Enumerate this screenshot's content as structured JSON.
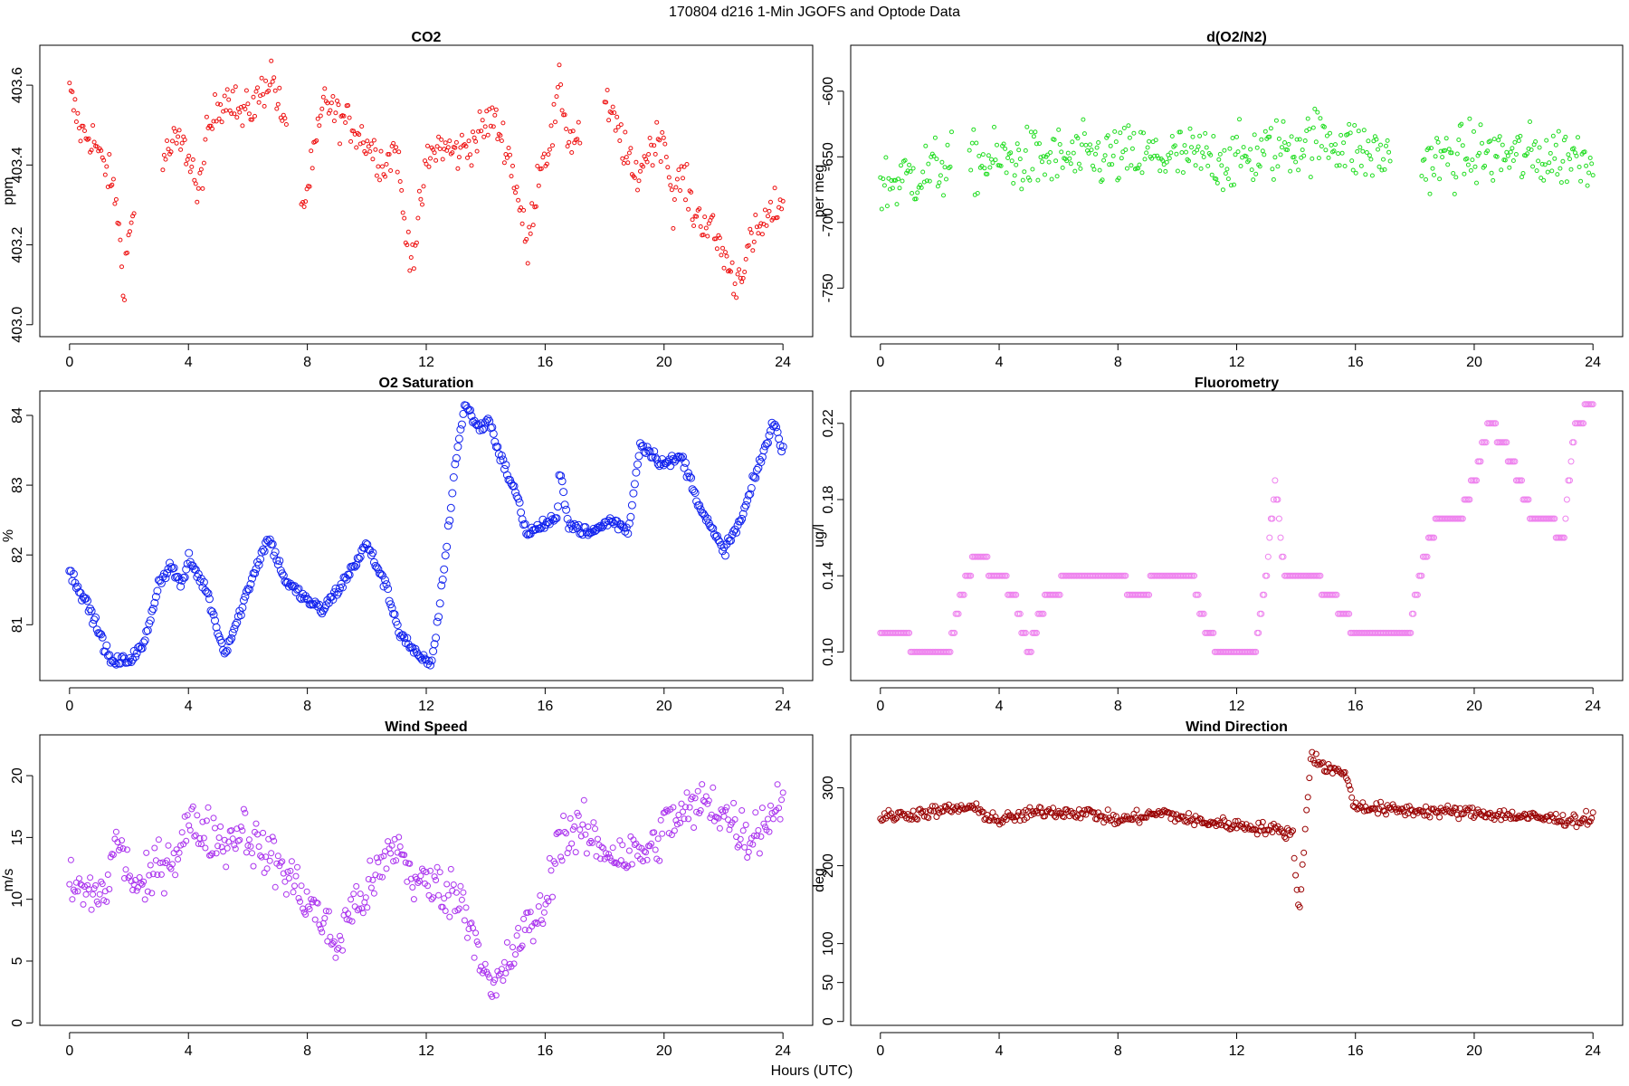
{
  "figure": {
    "suptitle": "170804   d216   1-Min  JGOFS and Optode Data",
    "xlabel": "Hours (UTC)"
  },
  "chart_data": [
    {
      "type": "scatter",
      "title": "CO2",
      "ylabel": "ppm",
      "xlim": [
        -1,
        25
      ],
      "ylim": [
        402.97,
        403.7
      ],
      "xticks": [
        0,
        4,
        8,
        12,
        16,
        20,
        24
      ],
      "yticks": [
        403.0,
        403.2,
        403.4,
        403.6
      ],
      "ytick_labels": [
        "403.0",
        "403.2",
        "403.4",
        "403.6"
      ],
      "color": "#ee1111",
      "marker_size": 2,
      "gaps": [
        [
          2.2,
          3.1
        ],
        [
          7.3,
          7.8
        ],
        [
          17.2,
          18.0
        ]
      ],
      "noise": 0.025,
      "points": [
        [
          0.0,
          403.58
        ],
        [
          0.4,
          403.48
        ],
        [
          0.8,
          403.47
        ],
        [
          1.0,
          403.42
        ],
        [
          1.3,
          403.38
        ],
        [
          1.6,
          403.3
        ],
        [
          1.8,
          403.1
        ],
        [
          2.0,
          403.22
        ],
        [
          2.2,
          403.3
        ],
        [
          3.2,
          403.42
        ],
        [
          3.6,
          403.46
        ],
        [
          4.0,
          403.43
        ],
        [
          4.2,
          403.38
        ],
        [
          4.3,
          403.3
        ],
        [
          4.6,
          403.46
        ],
        [
          5.0,
          403.55
        ],
        [
          5.4,
          403.58
        ],
        [
          5.8,
          403.52
        ],
        [
          6.3,
          403.56
        ],
        [
          6.8,
          403.63
        ],
        [
          7.2,
          403.5
        ],
        [
          7.9,
          403.3
        ],
        [
          8.3,
          403.45
        ],
        [
          8.6,
          403.57
        ],
        [
          9.0,
          403.52
        ],
        [
          9.5,
          403.5
        ],
        [
          10.2,
          403.44
        ],
        [
          10.6,
          403.4
        ],
        [
          11.0,
          403.45
        ],
        [
          11.3,
          403.22
        ],
        [
          11.6,
          403.18
        ],
        [
          12.0,
          403.4
        ],
        [
          12.4,
          403.45
        ],
        [
          13.0,
          403.43
        ],
        [
          13.6,
          403.46
        ],
        [
          14.2,
          403.52
        ],
        [
          14.7,
          403.45
        ],
        [
          15.1,
          403.32
        ],
        [
          15.4,
          403.18
        ],
        [
          15.8,
          403.4
        ],
        [
          16.2,
          403.46
        ],
        [
          16.5,
          403.6
        ],
        [
          16.8,
          403.46
        ],
        [
          17.2,
          403.48
        ],
        [
          18.0,
          403.55
        ],
        [
          18.5,
          403.48
        ],
        [
          19.0,
          403.36
        ],
        [
          19.5,
          403.44
        ],
        [
          20.0,
          403.48
        ],
        [
          20.3,
          403.3
        ],
        [
          20.6,
          403.38
        ],
        [
          21.0,
          403.28
        ],
        [
          21.5,
          403.25
        ],
        [
          22.0,
          403.18
        ],
        [
          22.4,
          403.1
        ],
        [
          22.8,
          403.18
        ],
        [
          23.2,
          403.24
        ],
        [
          23.6,
          403.27
        ],
        [
          24.0,
          403.32
        ]
      ]
    },
    {
      "type": "scatter",
      "title": "d(O2/N2)",
      "ylabel": "per meg",
      "xlim": [
        -1,
        25
      ],
      "ylim": [
        -787,
        -565
      ],
      "xticks": [
        0,
        4,
        8,
        12,
        16,
        20,
        24
      ],
      "yticks": [
        -750,
        -700,
        -650,
        -600
      ],
      "ytick_labels": [
        "-750",
        "-700",
        "-650",
        "-600"
      ],
      "color": "#22dd22",
      "marker_size": 2,
      "gaps": [
        [
          2.4,
          3.0
        ],
        [
          7.9,
          7.9
        ],
        [
          17.2,
          18.2
        ]
      ],
      "noise": 12,
      "points": [
        [
          0.0,
          -672
        ],
        [
          1.0,
          -665
        ],
        [
          2.0,
          -658
        ],
        [
          3.0,
          -655
        ],
        [
          4.0,
          -653
        ],
        [
          6.0,
          -652
        ],
        [
          8.0,
          -650
        ],
        [
          10.0,
          -650
        ],
        [
          12.0,
          -652
        ],
        [
          14.0,
          -640
        ],
        [
          15.0,
          -635
        ],
        [
          16.0,
          -645
        ],
        [
          18.0,
          -655
        ],
        [
          20.0,
          -648
        ],
        [
          22.0,
          -650
        ],
        [
          24.0,
          -648
        ]
      ]
    },
    {
      "type": "scatter",
      "title": "O2 Saturation",
      "ylabel": "%",
      "xlim": [
        -1,
        25
      ],
      "ylim": [
        80.2,
        84.35
      ],
      "xticks": [
        0,
        4,
        8,
        12,
        16,
        20,
        24
      ],
      "yticks": [
        81,
        82,
        83,
        84
      ],
      "ytick_labels": [
        "81",
        "82",
        "83",
        "84"
      ],
      "color": "#1122ee",
      "marker_size": 4,
      "gaps": [],
      "noise": 0.04,
      "points": [
        [
          0.0,
          81.75
        ],
        [
          0.3,
          81.55
        ],
        [
          0.8,
          81.1
        ],
        [
          1.4,
          80.45
        ],
        [
          2.0,
          80.5
        ],
        [
          2.5,
          80.7
        ],
        [
          3.0,
          81.6
        ],
        [
          3.4,
          81.85
        ],
        [
          3.8,
          81.55
        ],
        [
          4.0,
          81.95
        ],
        [
          4.6,
          81.5
        ],
        [
          5.2,
          80.6
        ],
        [
          5.6,
          81.0
        ],
        [
          6.2,
          81.75
        ],
        [
          6.7,
          82.25
        ],
        [
          7.3,
          81.6
        ],
        [
          8.0,
          81.35
        ],
        [
          8.5,
          81.2
        ],
        [
          9.2,
          81.6
        ],
        [
          10.0,
          82.15
        ],
        [
          10.6,
          81.6
        ],
        [
          11.1,
          80.9
        ],
        [
          11.8,
          80.5
        ],
        [
          12.2,
          80.45
        ],
        [
          12.6,
          81.8
        ],
        [
          13.0,
          83.4
        ],
        [
          13.3,
          84.15
        ],
        [
          13.8,
          83.8
        ],
        [
          14.1,
          83.95
        ],
        [
          14.5,
          83.4
        ],
        [
          15.0,
          82.9
        ],
        [
          15.4,
          82.3
        ],
        [
          16.0,
          82.45
        ],
        [
          16.4,
          82.5
        ],
        [
          16.5,
          83.2
        ],
        [
          16.8,
          82.45
        ],
        [
          17.5,
          82.3
        ],
        [
          18.2,
          82.5
        ],
        [
          18.8,
          82.35
        ],
        [
          19.2,
          83.6
        ],
        [
          20.0,
          83.3
        ],
        [
          20.6,
          83.4
        ],
        [
          21.3,
          82.6
        ],
        [
          22.0,
          82.05
        ],
        [
          22.6,
          82.5
        ],
        [
          23.2,
          83.3
        ],
        [
          23.7,
          83.9
        ],
        [
          24.0,
          83.5
        ]
      ]
    },
    {
      "type": "scatter",
      "title": "Fluorometry",
      "ylabel": "ug/l",
      "xlim": [
        -1,
        25
      ],
      "ylim": [
        0.085,
        0.237
      ],
      "xticks": [
        0,
        4,
        8,
        12,
        16,
        20,
        24
      ],
      "yticks": [
        0.1,
        0.14,
        0.18,
        0.22
      ],
      "ytick_labels": [
        "0.10",
        "0.14",
        "0.18",
        "0.22"
      ],
      "color": "#ee82ee",
      "marker_size": 3,
      "gaps": [],
      "noise": 0,
      "quantize": 0.01,
      "points": [
        [
          0.0,
          0.11
        ],
        [
          0.8,
          0.11
        ],
        [
          1.2,
          0.1
        ],
        [
          2.3,
          0.1
        ],
        [
          2.7,
          0.13
        ],
        [
          3.2,
          0.15
        ],
        [
          4.0,
          0.14
        ],
        [
          4.5,
          0.13
        ],
        [
          5.0,
          0.1
        ],
        [
          5.6,
          0.13
        ],
        [
          6.5,
          0.14
        ],
        [
          8.0,
          0.14
        ],
        [
          8.6,
          0.13
        ],
        [
          9.5,
          0.14
        ],
        [
          10.5,
          0.14
        ],
        [
          11.0,
          0.11
        ],
        [
          11.5,
          0.1
        ],
        [
          12.6,
          0.1
        ],
        [
          13.0,
          0.14
        ],
        [
          13.3,
          0.19
        ],
        [
          13.6,
          0.14
        ],
        [
          14.5,
          0.14
        ],
        [
          15.2,
          0.13
        ],
        [
          16.0,
          0.11
        ],
        [
          17.0,
          0.11
        ],
        [
          17.8,
          0.11
        ],
        [
          18.3,
          0.15
        ],
        [
          18.8,
          0.17
        ],
        [
          19.5,
          0.17
        ],
        [
          20.0,
          0.19
        ],
        [
          20.5,
          0.22
        ],
        [
          21.0,
          0.21
        ],
        [
          21.5,
          0.19
        ],
        [
          22.0,
          0.17
        ],
        [
          22.5,
          0.17
        ],
        [
          23.0,
          0.16
        ],
        [
          23.4,
          0.22
        ],
        [
          24.0,
          0.23
        ]
      ]
    },
    {
      "type": "scatter",
      "title": "Wind Speed",
      "ylabel": "m/s",
      "xlim": [
        -1,
        25
      ],
      "ylim": [
        -0.2,
        23.3
      ],
      "xticks": [
        0,
        4,
        8,
        12,
        16,
        20,
        24
      ],
      "yticks": [
        0,
        5,
        10,
        15,
        20
      ],
      "ytick_labels": [
        "0",
        "5",
        "10",
        "15",
        "20"
      ],
      "color": "#aa33ee",
      "marker_size": 3,
      "gaps": [],
      "noise": 1.0,
      "points": [
        [
          0.0,
          11
        ],
        [
          0.6,
          10.5
        ],
        [
          1.2,
          10.5
        ],
        [
          1.6,
          15
        ],
        [
          2.0,
          12
        ],
        [
          2.5,
          10.5
        ],
        [
          3.0,
          13
        ],
        [
          3.5,
          13.5
        ],
        [
          4.0,
          16
        ],
        [
          4.6,
          15.5
        ],
        [
          5.3,
          14.5
        ],
        [
          5.8,
          16
        ],
        [
          6.4,
          14
        ],
        [
          7.0,
          13
        ],
        [
          7.8,
          10.5
        ],
        [
          8.3,
          9
        ],
        [
          9.0,
          6
        ],
        [
          9.4,
          9
        ],
        [
          10.0,
          10.5
        ],
        [
          10.5,
          12.5
        ],
        [
          11.0,
          14.5
        ],
        [
          11.6,
          11.5
        ],
        [
          12.4,
          11
        ],
        [
          13.2,
          10
        ],
        [
          13.8,
          6
        ],
        [
          14.2,
          2
        ],
        [
          14.6,
          4
        ],
        [
          15.0,
          6
        ],
        [
          15.5,
          8
        ],
        [
          16.0,
          9
        ],
        [
          16.4,
          15
        ],
        [
          17.2,
          15.5
        ],
        [
          18.0,
          14
        ],
        [
          18.8,
          13.5
        ],
        [
          19.6,
          14
        ],
        [
          20.0,
          16
        ],
        [
          20.8,
          17
        ],
        [
          21.5,
          18
        ],
        [
          22.2,
          16.5
        ],
        [
          22.8,
          15
        ],
        [
          23.5,
          16.5
        ],
        [
          24.0,
          18.5
        ]
      ]
    },
    {
      "type": "scatter",
      "title": "Wind Direction",
      "ylabel": "deg",
      "xlim": [
        -1,
        25
      ],
      "ylim": [
        -5,
        368
      ],
      "xticks": [
        0,
        4,
        8,
        12,
        16,
        20,
        24
      ],
      "yticks": [
        0,
        50,
        100,
        200,
        300
      ],
      "ytick_labels": [
        "0",
        "50",
        "100",
        "200",
        "300"
      ],
      "color": "#990000",
      "marker_size": 3,
      "gaps": [],
      "noise": 4,
      "points": [
        [
          0.0,
          262
        ],
        [
          1.5,
          268
        ],
        [
          3.0,
          275
        ],
        [
          4.0,
          258
        ],
        [
          5.5,
          270
        ],
        [
          7.0,
          268
        ],
        [
          8.0,
          258
        ],
        [
          9.5,
          268
        ],
        [
          10.5,
          258
        ],
        [
          11.5,
          254
        ],
        [
          12.5,
          250
        ],
        [
          13.5,
          245
        ],
        [
          13.9,
          240
        ],
        [
          14.0,
          180
        ],
        [
          14.1,
          140
        ],
        [
          14.3,
          240
        ],
        [
          14.5,
          345
        ],
        [
          14.8,
          330
        ],
        [
          15.4,
          320
        ],
        [
          15.7,
          320
        ],
        [
          15.9,
          278
        ],
        [
          17.0,
          272
        ],
        [
          18.5,
          270
        ],
        [
          20.0,
          268
        ],
        [
          22.0,
          262
        ],
        [
          23.5,
          258
        ],
        [
          24.0,
          262
        ]
      ]
    }
  ]
}
